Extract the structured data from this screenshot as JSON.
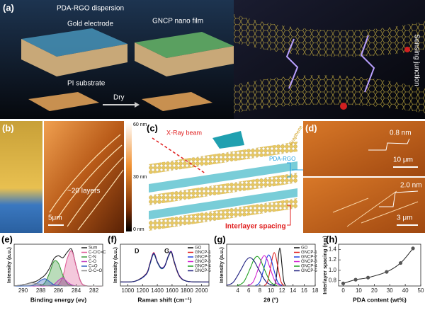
{
  "figure": {
    "panel_a": {
      "label": "(a)",
      "dispersion": "PDA-RGO dispersion",
      "electrode": "Gold electrode",
      "film": "GNCP nano film",
      "substrate": "PI substrate",
      "dry": "Dry",
      "junction": "Sensing junction"
    },
    "panel_b": {
      "label": "(b)",
      "layers": "~20 layers",
      "scale": "5μm",
      "colorbar": [
        "60 nm",
        "30 nm",
        "0 nm"
      ]
    },
    "panel_c": {
      "label": "(c)",
      "xray": "X-Ray beam",
      "graphene": "Graphene",
      "pda": "PDA-RGO",
      "spacing": "Interlayer spacing"
    },
    "panel_d": {
      "label": "(d)",
      "step1": "0.8 nm",
      "scale1": "10 μm",
      "step2": "2.0 nm",
      "scale2": "3 μm"
    }
  },
  "chart_data": [
    {
      "type": "line",
      "panel": "(e)",
      "xlabel": "Binding energy (ev)",
      "ylabel": "Intensity (a.u.)",
      "xlim": [
        291,
        281
      ],
      "ylim": [
        0,
        1.05
      ],
      "xticks": [
        290,
        288,
        286,
        284,
        282
      ],
      "x": [
        291,
        290,
        289,
        288.5,
        288,
        287.5,
        287,
        286.5,
        286,
        285.5,
        285,
        284.5,
        284,
        283.5,
        283,
        282,
        281
      ],
      "series": [
        {
          "name": "Sum",
          "color": "#222222",
          "fill": false,
          "values": [
            0,
            0.03,
            0.09,
            0.12,
            0.19,
            0.28,
            0.45,
            0.69,
            0.76,
            0.71,
            0.85,
            0.92,
            0.5,
            0.12,
            0.01,
            0,
            0
          ]
        },
        {
          "name": "C-C/C=C",
          "color": "#e0609a",
          "fill": true,
          "values": [
            0,
            0,
            0,
            0,
            0,
            0,
            0,
            0,
            0.035,
            0.24,
            0.69,
            0.88,
            0.5,
            0.12,
            0.01,
            0,
            0
          ]
        },
        {
          "name": "C-N",
          "color": "#3a9a3a",
          "fill": true,
          "values": [
            0,
            0,
            0,
            0,
            0.01,
            0.09,
            0.33,
            0.62,
            0.57,
            0.27,
            0.06,
            0.01,
            0,
            0,
            0,
            0,
            0
          ]
        },
        {
          "name": "C-O",
          "color": "#c040c0",
          "fill": true,
          "values": [
            0,
            0,
            0,
            0,
            0,
            0,
            0.01,
            0.04,
            0.14,
            0.2,
            0.1,
            0.03,
            0,
            0,
            0,
            0,
            0
          ]
        },
        {
          "name": "C=O",
          "color": "#3060c0",
          "fill": true,
          "values": [
            0,
            0,
            0.01,
            0.06,
            0.14,
            0.18,
            0.11,
            0.03,
            0.01,
            0,
            0,
            0,
            0,
            0,
            0,
            0,
            0
          ]
        },
        {
          "name": "O-C=O",
          "color": "#888888",
          "fill": true,
          "values": [
            0,
            0.03,
            0.08,
            0.06,
            0.04,
            0.01,
            0,
            0,
            0,
            0,
            0,
            0,
            0,
            0,
            0,
            0,
            0
          ]
        }
      ]
    },
    {
      "type": "line",
      "panel": "(f)",
      "xlabel": "Raman shift (cm⁻¹)",
      "ylabel": "Intensity (a.u.)",
      "annotations": [
        "D",
        "G"
      ],
      "xlim": [
        900,
        2100
      ],
      "ylim": [
        0,
        1.05
      ],
      "xticks": [
        1000,
        1200,
        1400,
        1600,
        1800,
        2000
      ],
      "x": [
        900,
        1100,
        1250,
        1300,
        1350,
        1400,
        1450,
        1500,
        1550,
        1590,
        1630,
        1700,
        1800,
        2000,
        2100
      ],
      "series": [
        {
          "name": "GO",
          "color": "#111111",
          "values": [
            0.1,
            0.12,
            0.3,
            0.55,
            0.82,
            0.6,
            0.45,
            0.5,
            0.75,
            0.86,
            0.6,
            0.25,
            0.12,
            0.1,
            0.1
          ]
        },
        {
          "name": "GNCP-1",
          "color": "#e02020",
          "values": [
            0.1,
            0.12,
            0.31,
            0.57,
            0.84,
            0.61,
            0.45,
            0.5,
            0.74,
            0.84,
            0.58,
            0.24,
            0.12,
            0.1,
            0.1
          ]
        },
        {
          "name": "GNCP-2",
          "color": "#2040e0",
          "values": [
            0.1,
            0.12,
            0.29,
            0.54,
            0.8,
            0.59,
            0.44,
            0.49,
            0.74,
            0.85,
            0.6,
            0.25,
            0.12,
            0.1,
            0.1
          ]
        },
        {
          "name": "GNCP-3",
          "color": "#d020d0",
          "values": [
            0.1,
            0.12,
            0.3,
            0.56,
            0.83,
            0.6,
            0.46,
            0.51,
            0.76,
            0.87,
            0.61,
            0.26,
            0.12,
            0.1,
            0.1
          ]
        },
        {
          "name": "GNCP-4",
          "color": "#20a020",
          "values": [
            0.1,
            0.12,
            0.3,
            0.55,
            0.81,
            0.6,
            0.45,
            0.5,
            0.75,
            0.85,
            0.6,
            0.25,
            0.12,
            0.1,
            0.1
          ]
        },
        {
          "name": "GNCP-5",
          "color": "#202080",
          "values": [
            0.1,
            0.12,
            0.3,
            0.56,
            0.82,
            0.61,
            0.46,
            0.5,
            0.76,
            0.86,
            0.61,
            0.25,
            0.12,
            0.1,
            0.1
          ]
        }
      ]
    },
    {
      "type": "line",
      "panel": "(g)",
      "xlabel": "2θ (°)",
      "ylabel": "Intensity (a.u.)",
      "xlim": [
        2,
        18
      ],
      "ylim": [
        0,
        1.1
      ],
      "xticks": [
        4,
        6,
        8,
        10,
        12,
        14,
        16,
        18
      ],
      "series": [
        {
          "name": "GO",
          "color": "#111111",
          "x": [
            10.55,
            10.9,
            11.25,
            11.43,
            11.6,
            11.78,
            11.95,
            12.3,
            12.65
          ],
          "values": [
            0.01,
            0.14,
            0.61,
            0.88,
            1,
            0.88,
            0.61,
            0.14,
            0.01
          ]
        },
        {
          "name": "GNCP-1",
          "color": "#e02020",
          "x": [
            8.8,
            9.4,
            10,
            10.3,
            10.6,
            10.9,
            11.2,
            11.8,
            12.4
          ],
          "values": [
            0.01,
            0.12,
            0.54,
            0.77,
            0.88,
            0.77,
            0.54,
            0.12,
            0.01
          ]
        },
        {
          "name": "GNCP-2",
          "color": "#2040e0",
          "x": [
            7.2,
            8,
            8.8,
            9.2,
            9.6,
            10,
            10.4,
            11.2,
            12
          ],
          "values": [
            0.01,
            0.11,
            0.5,
            0.72,
            0.82,
            0.72,
            0.5,
            0.11,
            0.01
          ]
        },
        {
          "name": "GNCP-3",
          "color": "#d020d0",
          "x": [
            5.8,
            6.8,
            7.8,
            8.3,
            8.8,
            9.3,
            9.8,
            10.8,
            11.8
          ],
          "values": [
            0.01,
            0.11,
            0.49,
            0.7,
            0.8,
            0.7,
            0.49,
            0.11,
            0.01
          ]
        },
        {
          "name": "GNCP-4",
          "color": "#20a020",
          "x": [
            3.9,
            5.1,
            6.3,
            6.9,
            7.5,
            8.1,
            8.7,
            9.9,
            11.1
          ],
          "values": [
            0.01,
            0.11,
            0.48,
            0.69,
            0.78,
            0.69,
            0.48,
            0.11,
            0.01
          ]
        },
        {
          "name": "GNCP-5",
          "color": "#202080",
          "x": [
            2,
            3.2,
            4.7,
            5.45,
            6.2,
            6.95,
            7.7,
            9.2,
            10.7
          ],
          "values": [
            0.02,
            0.1,
            0.46,
            0.66,
            0.75,
            0.66,
            0.46,
            0.1,
            0.01
          ]
        }
      ]
    },
    {
      "type": "scatter",
      "panel": "(h)",
      "xlabel": "PDA content (wt%)",
      "ylabel": "Interlayer spacing (nm)",
      "xlim": [
        -3,
        50
      ],
      "ylim": [
        0.7,
        1.5
      ],
      "xticks": [
        0,
        10,
        20,
        30,
        40,
        50
      ],
      "yticks": [
        {
          "value": 0.8,
          "label": "0.8"
        },
        {
          "value": 1.0,
          "label": "1.0"
        },
        {
          "value": 1.2,
          "label": "1.2"
        },
        {
          "value": 1.4,
          "label": "1.4"
        }
      ],
      "color": "#555555",
      "x": [
        0,
        8,
        16,
        28,
        37,
        45
      ],
      "values": [
        0.75,
        0.82,
        0.86,
        0.97,
        1.14,
        1.42
      ]
    }
  ]
}
